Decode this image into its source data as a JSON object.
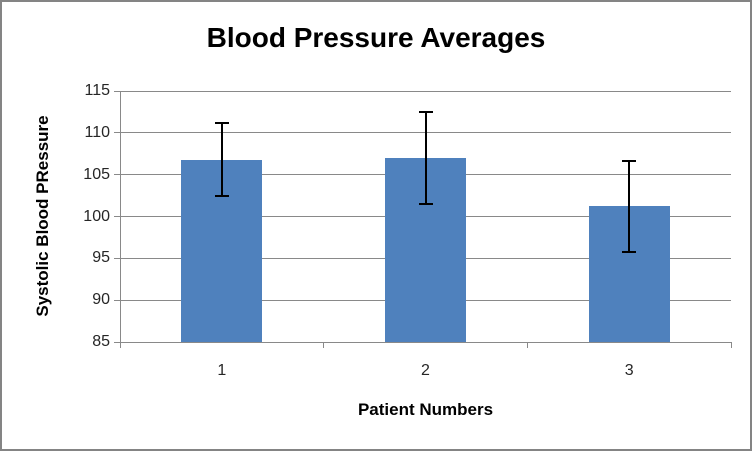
{
  "window": {
    "background": "#ffffff",
    "border_color": "#848484"
  },
  "chart_data": {
    "type": "bar",
    "title": "Blood Pressure Averages",
    "xlabel": "Patient Numbers",
    "ylabel": "Systolic Blood PRessure",
    "categories": [
      "1",
      "2",
      "3"
    ],
    "values": [
      106.8,
      107.0,
      101.2
    ],
    "error_plus": [
      4.4,
      5.5,
      5.4
    ],
    "error_minus": [
      4.3,
      5.5,
      5.5
    ],
    "ylim": [
      85,
      115
    ],
    "yticks": [
      85,
      90,
      95,
      100,
      105,
      110,
      115
    ],
    "grid": true,
    "legend": "none",
    "bar_color": "#4F81BD",
    "gridline_color": "#898989",
    "axis_color": "#898989",
    "error_bar_color": "#000000",
    "tick_label_color": "#262626",
    "title_color": "#000000"
  }
}
